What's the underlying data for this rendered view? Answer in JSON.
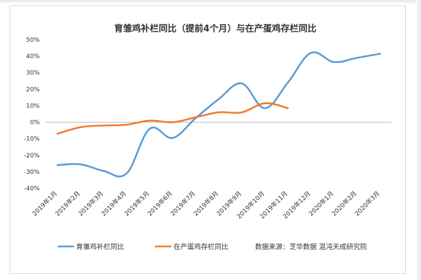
{
  "chart_data": {
    "type": "line",
    "title": "育雏鸡补栏同比（提前4个月）与在产蛋鸡存栏同比",
    "categories": [
      "2019年1月",
      "2019年2月",
      "2019年3月",
      "2019年4月",
      "2019年5月",
      "2019年6月",
      "2019年7月",
      "2019年8月",
      "2019年9月",
      "2019年10月",
      "2019年11月",
      "2019年12月",
      "2020年1月",
      "2020年2月",
      "2020年3月"
    ],
    "y_ticks": [
      "50%",
      "40%",
      "30%",
      "20%",
      "10%",
      "0%",
      "-10%",
      "-20%",
      "-30%",
      "-40%"
    ],
    "ylim": [
      -40,
      50
    ],
    "series": [
      {
        "name": "育雏鸡补栏同比",
        "color": "#5b9bd5",
        "values": [
          -26,
          -25.5,
          -29.5,
          -31,
          -4,
          -9.5,
          2.5,
          14,
          23.5,
          8.5,
          24,
          42,
          36.5,
          39,
          41.5
        ]
      },
      {
        "name": "在产蛋鸡存栏同比",
        "color": "#ed7d31",
        "values": [
          -7,
          -3,
          -2,
          -1.5,
          1,
          0,
          3,
          6,
          6,
          11.5,
          8.5,
          null,
          null,
          null,
          null
        ]
      }
    ],
    "legend_position": "bottom",
    "source": "数据来源：芝华数据 混沌天成研究院"
  }
}
